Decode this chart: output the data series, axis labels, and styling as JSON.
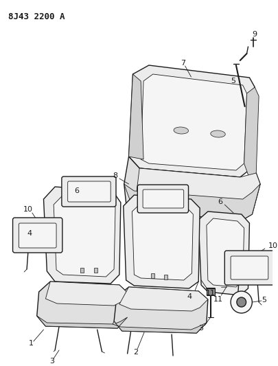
{
  "title": "8J43 2200 A",
  "bg_color": "#ffffff",
  "line_color": "#1a1a1a",
  "fig_width": 4.06,
  "fig_height": 5.33,
  "dpi": 100
}
